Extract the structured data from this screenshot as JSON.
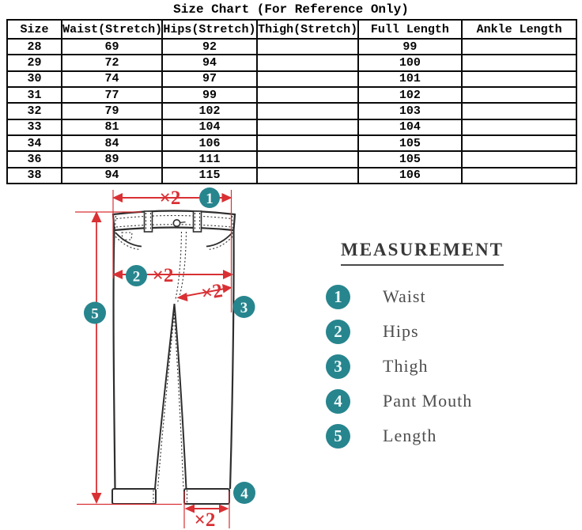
{
  "title": "Size Chart  (For Reference Only)",
  "table": {
    "columns": [
      "Size",
      "Waist(Stretch)",
      "Hips(Stretch)",
      "Thigh(Stretch)",
      "Full Length",
      "Ankle Length"
    ],
    "rows": [
      [
        "28",
        "69",
        "92",
        "",
        "99",
        ""
      ],
      [
        "29",
        "72",
        "94",
        "",
        "100",
        ""
      ],
      [
        "30",
        "74",
        "97",
        "",
        "101",
        ""
      ],
      [
        "31",
        "77",
        "99",
        "",
        "102",
        ""
      ],
      [
        "32",
        "79",
        "102",
        "",
        "103",
        ""
      ],
      [
        "33",
        "81",
        "104",
        "",
        "104",
        ""
      ],
      [
        "34",
        "84",
        "106",
        "",
        "105",
        ""
      ],
      [
        "36",
        "89",
        "111",
        "",
        "105",
        ""
      ],
      [
        "38",
        "94",
        "115",
        "",
        "106",
        ""
      ]
    ]
  },
  "diagram": {
    "multiplier": "×2",
    "markers": [
      "1",
      "2",
      "3",
      "4",
      "5"
    ]
  },
  "legend": {
    "title": "MEASUREMENT",
    "items": [
      {
        "number": "1",
        "label": "Waist"
      },
      {
        "number": "2",
        "label": "Hips"
      },
      {
        "number": "3",
        "label": "Thigh"
      },
      {
        "number": "4",
        "label": "Pant Mouth"
      },
      {
        "number": "5",
        "label": "Length"
      }
    ]
  },
  "colors": {
    "accent_teal": "#27858e",
    "accent_red": "#d93034",
    "line_dark": "#2e2e2e"
  }
}
